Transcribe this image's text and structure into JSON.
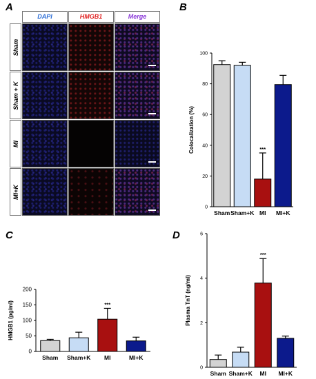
{
  "panels": {
    "a": "A",
    "b": "B",
    "c": "C",
    "d": "D"
  },
  "micrograph": {
    "columns": [
      "DAPI",
      "HMGB1",
      "Merge"
    ],
    "column_colors": [
      "#2f6fd6",
      "#e01f1f",
      "#8a3ad8"
    ],
    "rows": [
      "Sham",
      "Sham + K",
      "MI",
      "MI+K"
    ]
  },
  "chart_data": [
    {
      "panel": "B",
      "type": "bar",
      "categories": [
        "Sham",
        "Sham+K",
        "MI",
        "MI+K"
      ],
      "values": [
        92.5,
        92,
        18,
        79.5
      ],
      "errors": [
        2.5,
        2,
        17,
        6
      ],
      "colors": [
        "#d3d3d3",
        "#c6dcf5",
        "#a81010",
        "#0c1a8c"
      ],
      "ylabel": "Colocalization (%)",
      "ylim": [
        0,
        100
      ],
      "yticks": [
        0,
        20,
        40,
        60,
        80,
        100
      ],
      "annotations": [
        {
          "category": "MI",
          "text": "***"
        }
      ]
    },
    {
      "panel": "C",
      "type": "bar",
      "categories": [
        "Sham",
        "Sham+K",
        "MI",
        "MI+K"
      ],
      "values": [
        35,
        44,
        104,
        34
      ],
      "errors": [
        4,
        18,
        35,
        12
      ],
      "colors": [
        "#d3d3d3",
        "#c6dcf5",
        "#a81010",
        "#0c1a8c"
      ],
      "ylabel": "HMGB1 (pg/ml)",
      "ylim": [
        0,
        200
      ],
      "yticks": [
        0,
        50,
        100,
        150,
        200
      ],
      "annotations": [
        {
          "category": "MI",
          "text": "***"
        }
      ]
    },
    {
      "panel": "D",
      "type": "bar",
      "categories": [
        "Sham",
        "Sham+K",
        "MI",
        "MI+K"
      ],
      "values": [
        0.35,
        0.68,
        3.78,
        1.3
      ],
      "errors": [
        0.2,
        0.22,
        1.1,
        0.1
      ],
      "colors": [
        "#d3d3d3",
        "#c6dcf5",
        "#a81010",
        "#0c1a8c"
      ],
      "ylabel": "Plasma TnT (ng/ml)",
      "ylim": [
        0,
        6
      ],
      "yticks": [
        0,
        2,
        4,
        6
      ],
      "annotations": [
        {
          "category": "MI",
          "text": "***"
        }
      ]
    }
  ]
}
